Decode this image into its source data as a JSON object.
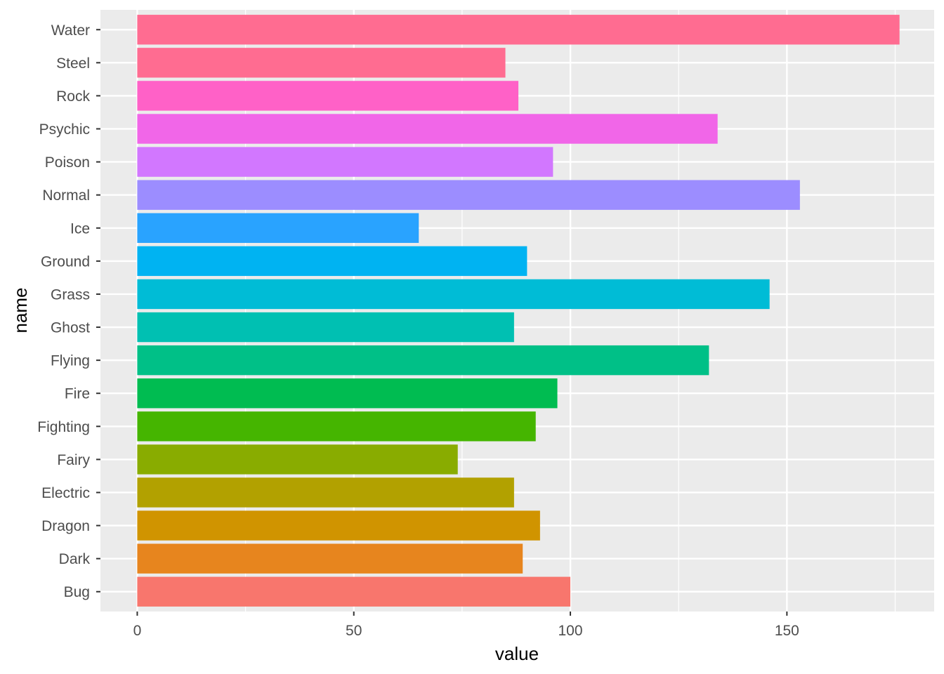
{
  "chart_data": {
    "type": "bar",
    "orientation": "horizontal",
    "xlabel": "value",
    "ylabel": "name",
    "xlim": [
      -8.5,
      184
    ],
    "x_ticks": [
      0,
      50,
      100,
      150
    ],
    "grid": true,
    "legend": "none",
    "panel_background": "#EBEBEB",
    "categories": [
      "Bug",
      "Dark",
      "Dragon",
      "Electric",
      "Fairy",
      "Fighting",
      "Fire",
      "Flying",
      "Ghost",
      "Grass",
      "Ground",
      "Ice",
      "Normal",
      "Poison",
      "Psychic",
      "Rock",
      "Steel",
      "Water"
    ],
    "values": [
      100,
      89,
      93,
      87,
      74,
      92,
      97,
      132,
      87,
      146,
      90,
      65,
      153,
      96,
      134,
      88,
      85,
      176
    ],
    "colors": [
      "#F8766D",
      "#E7851E",
      "#D09400",
      "#B2A100",
      "#89AC00",
      "#45B500",
      "#00BC51",
      "#00C087",
      "#00C0B2",
      "#00BCD6",
      "#00B3F2",
      "#29A3FF",
      "#9C8DFF",
      "#D277FF",
      "#F166E8",
      "#FF61C7",
      "#FF6C91",
      "#FF6C91"
    ]
  }
}
